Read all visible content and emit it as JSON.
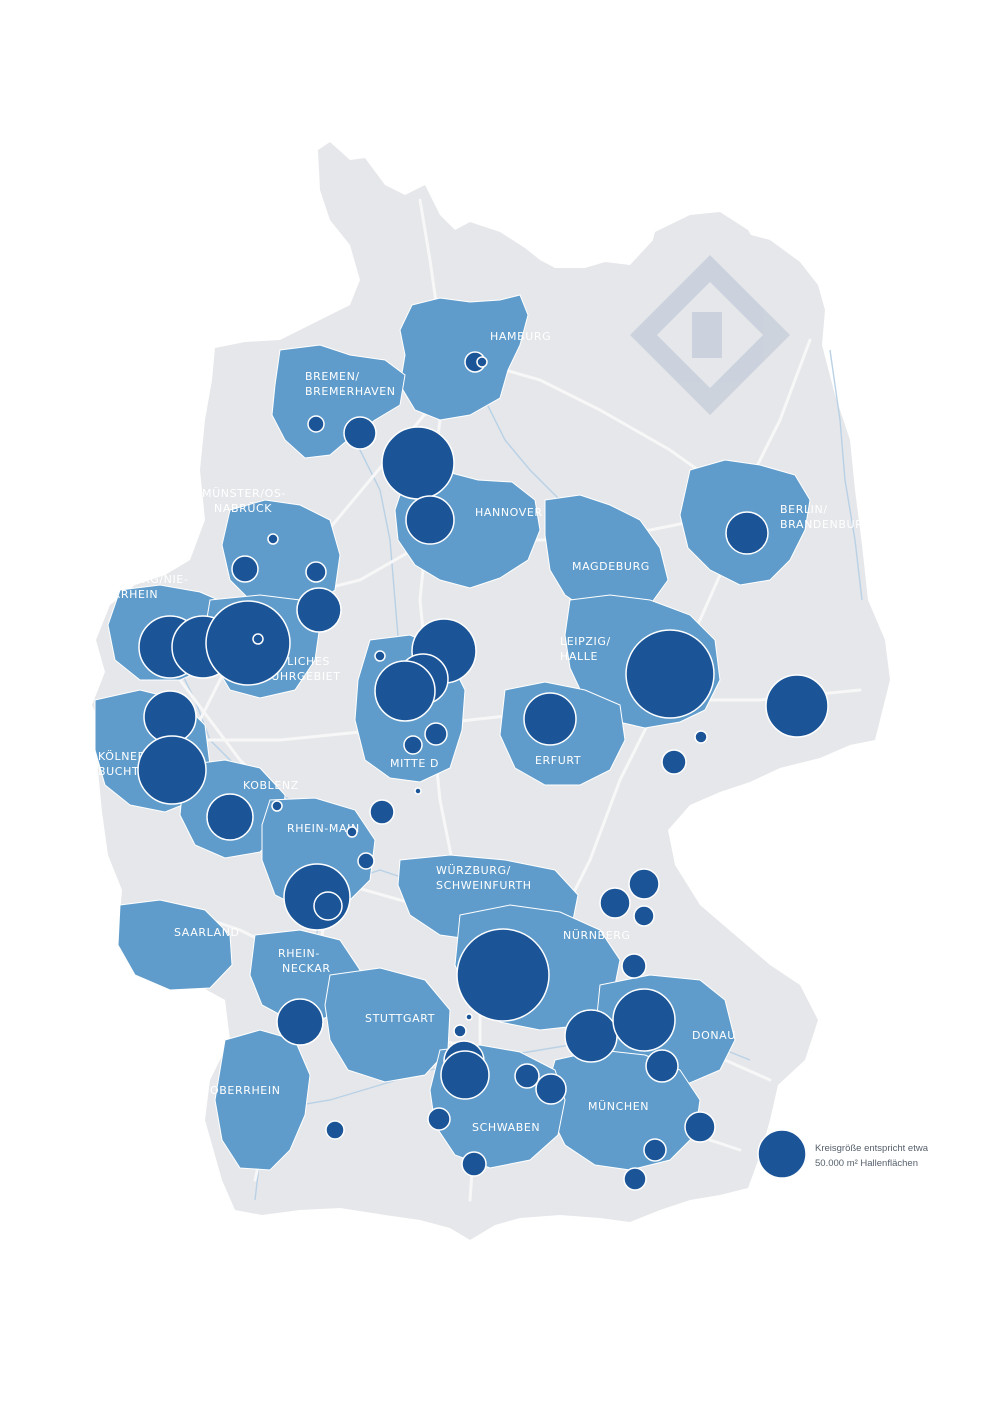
{
  "colors": {
    "background": "#ffffff",
    "country_fill": "#e6e7ea",
    "road": "#f7f7f8",
    "river": "#b9d1e6",
    "region_fill": "#5f9ccb",
    "region_border": "#ffffff",
    "bubble_fill": "#1b5598",
    "bubble_stroke": "#ffffff",
    "watermark": "#c9d0dc"
  },
  "icons": {
    "watermark": "company-logo-watermark"
  },
  "regions": [
    {
      "id": "hamburg",
      "label_lines": [
        "HAMBURG"
      ]
    },
    {
      "id": "bremen",
      "label_lines": [
        "BREMEN/",
        "BREMERHAVEN"
      ]
    },
    {
      "id": "hannover",
      "label_lines": [
        "HANNOVER"
      ]
    },
    {
      "id": "berlin",
      "label_lines": [
        "BERLIN/",
        "BRANDENBURG"
      ]
    },
    {
      "id": "muenster",
      "label_lines": [
        "MÜNSTER/OS-",
        "NABRÜCK"
      ]
    },
    {
      "id": "magdeburg",
      "label_lines": [
        "MAGDEBURG"
      ]
    },
    {
      "id": "duisburg",
      "label_lines": [
        "DUISBURG/NIE-",
        "DERRHEIN"
      ]
    },
    {
      "id": "leipzig",
      "label_lines": [
        "LEIPZIG/",
        "HALLE"
      ]
    },
    {
      "id": "ruhr",
      "label_lines": [
        "ÖSTLICHES",
        "RUHRGEBIET"
      ]
    },
    {
      "id": "koeln",
      "label_lines": [
        "KÖLNER",
        "BUCHT"
      ]
    },
    {
      "id": "mitte",
      "label_lines": [
        "MITTE D"
      ]
    },
    {
      "id": "erfurt",
      "label_lines": [
        "ERFURT"
      ]
    },
    {
      "id": "koblenz",
      "label_lines": [
        "KOBLENZ"
      ]
    },
    {
      "id": "rheinmain",
      "label_lines": [
        "RHEIN-MAIN"
      ]
    },
    {
      "id": "wuerzburg",
      "label_lines": [
        "WÜRZBURG/",
        "SCHWEINFURTH"
      ]
    },
    {
      "id": "saarland",
      "label_lines": [
        "SAARLAND"
      ]
    },
    {
      "id": "nuernberg",
      "label_lines": [
        "NÜRNBERG"
      ]
    },
    {
      "id": "rheinneckar",
      "label_lines": [
        "RHEIN-",
        "NECKAR"
      ]
    },
    {
      "id": "stuttgart",
      "label_lines": [
        "STUTTGART"
      ]
    },
    {
      "id": "donau",
      "label_lines": [
        "DONAU"
      ]
    },
    {
      "id": "oberrhein",
      "label_lines": [
        "OBERRHEIN"
      ]
    },
    {
      "id": "muenchen",
      "label_lines": [
        "MÜNCHEN"
      ]
    },
    {
      "id": "schwaben",
      "label_lines": [
        "SCHWABEN"
      ]
    }
  ],
  "legend": {
    "line1": "Kreisgröße entspricht etwa",
    "line2": "50.000 m² Hallenflächen"
  }
}
